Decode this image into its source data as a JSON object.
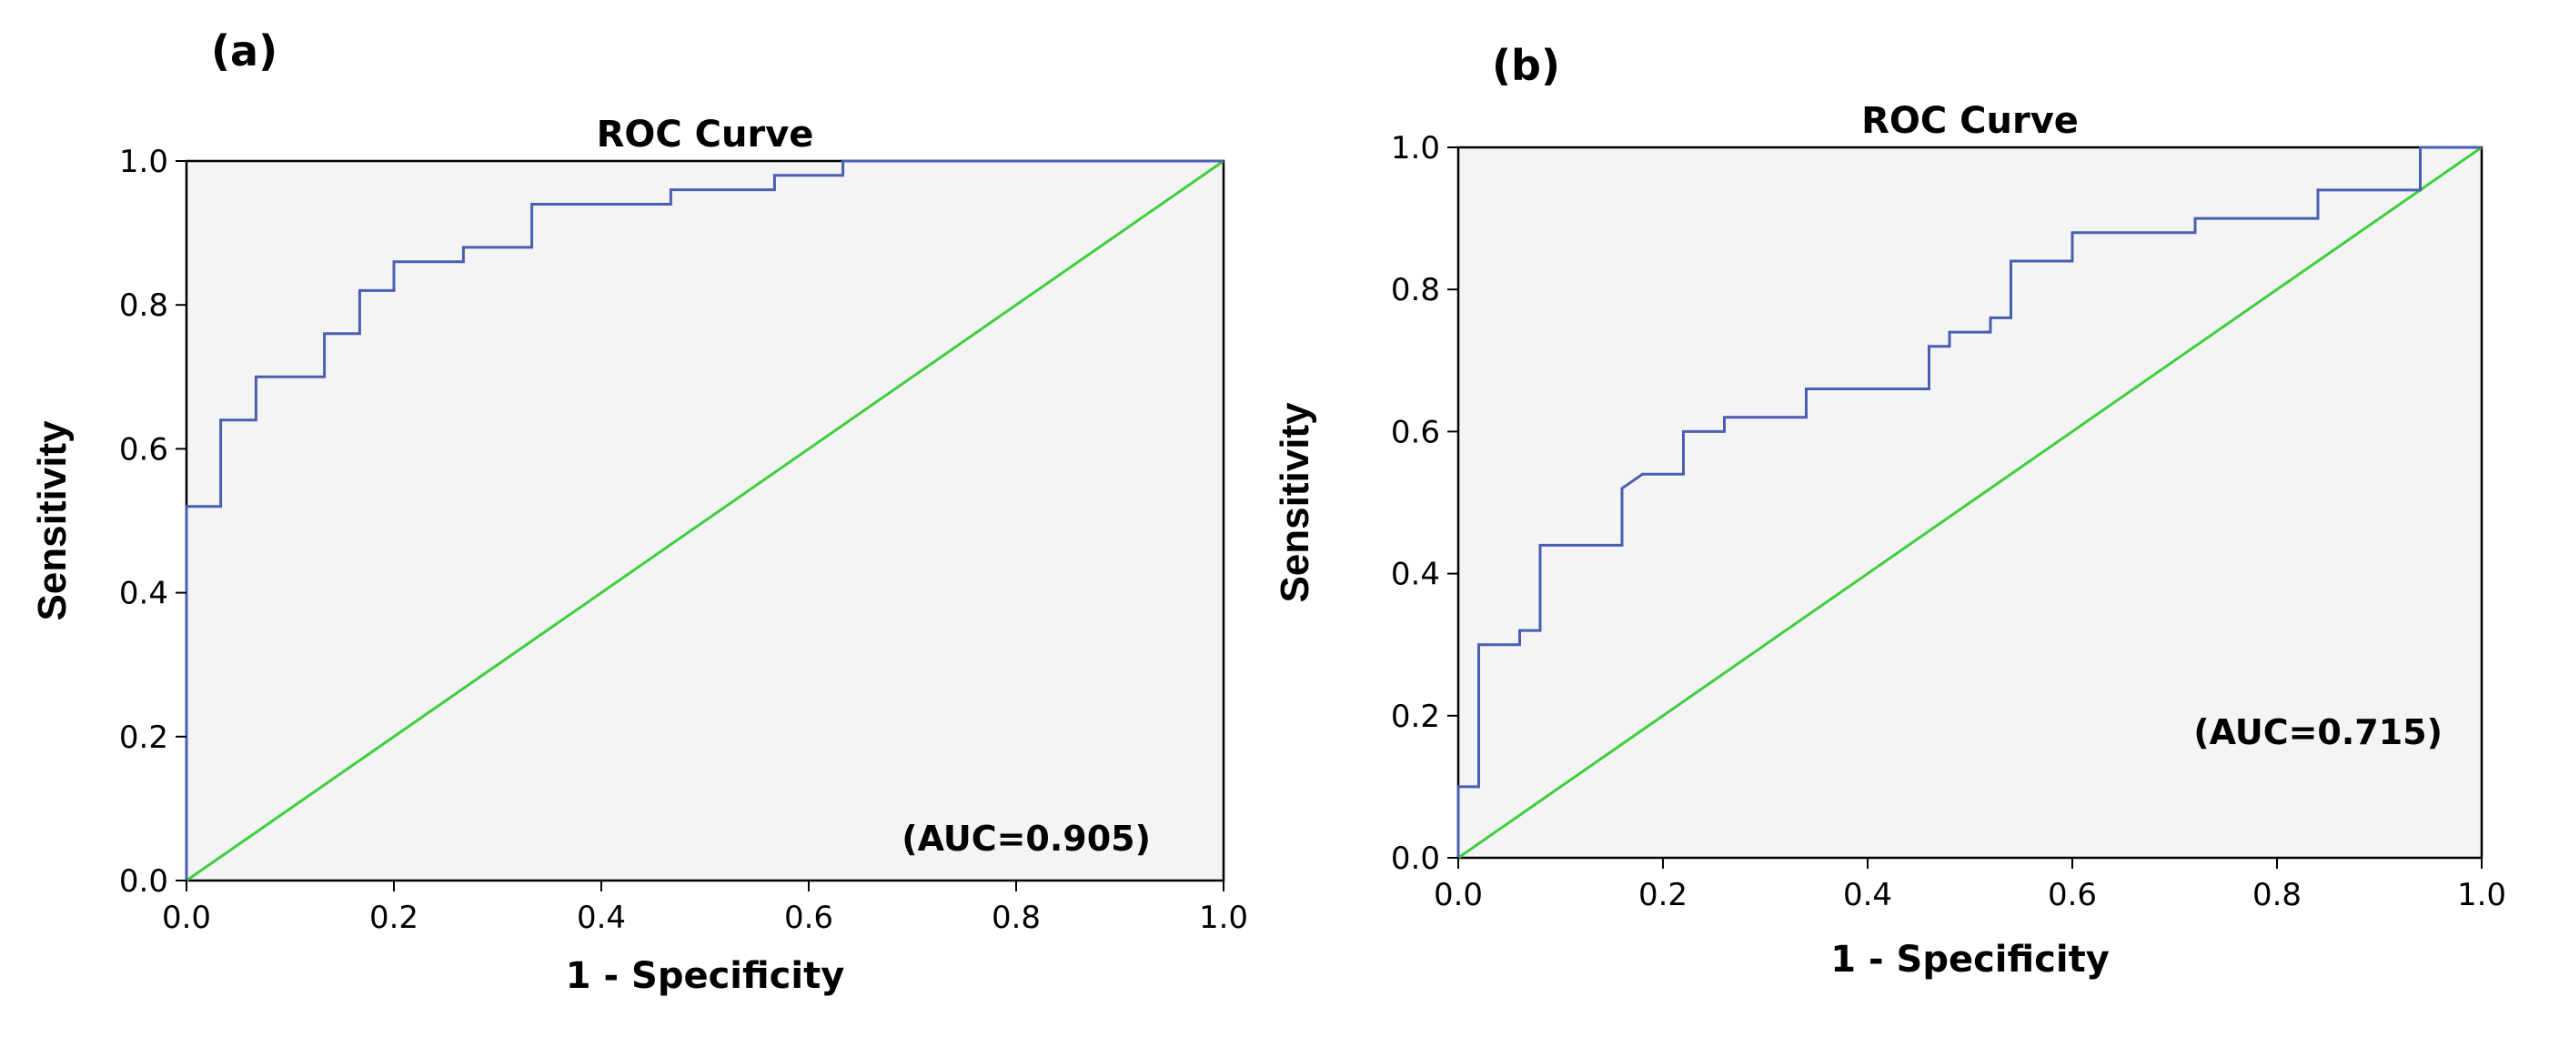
{
  "panels": [
    {
      "label": "(a)",
      "annotation": "(AUC=0.905)"
    },
    {
      "label": "(b)",
      "annotation": "(AUC=0.715)"
    }
  ],
  "colors": {
    "roc_curve": "#4a5fb0",
    "reference_line": "#3ecf3e"
  },
  "chart_data": [
    {
      "type": "line",
      "title": "ROC Curve",
      "xlabel": "1 - Specificity",
      "ylabel": "Sensitivity",
      "xlim": [
        0,
        1
      ],
      "ylim": [
        0,
        1
      ],
      "x_ticks": [
        "0.0",
        "0.2",
        "0.4",
        "0.6",
        "0.8",
        "1.0"
      ],
      "y_ticks": [
        "0.0",
        "0.2",
        "0.4",
        "0.6",
        "0.8",
        "1.0"
      ],
      "grid": false,
      "annotation": "(AUC=0.905)",
      "series": [
        {
          "style": "step",
          "points": [
            [
              0,
              0
            ],
            [
              0,
              0.52
            ],
            [
              0.033,
              0.52
            ],
            [
              0.033,
              0.64
            ],
            [
              0.067,
              0.64
            ],
            [
              0.067,
              0.7
            ],
            [
              0.133,
              0.7
            ],
            [
              0.133,
              0.76
            ],
            [
              0.167,
              0.76
            ],
            [
              0.167,
              0.82
            ],
            [
              0.2,
              0.82
            ],
            [
              0.2,
              0.86
            ],
            [
              0.267,
              0.86
            ],
            [
              0.267,
              0.88
            ],
            [
              0.333,
              0.88
            ],
            [
              0.333,
              0.94
            ],
            [
              0.467,
              0.94
            ],
            [
              0.467,
              0.96
            ],
            [
              0.567,
              0.96
            ],
            [
              0.567,
              0.98
            ],
            [
              0.633,
              0.98
            ],
            [
              0.633,
              1.0
            ],
            [
              1.0,
              1.0
            ]
          ]
        },
        {
          "style": "reference",
          "points": [
            [
              0,
              0
            ],
            [
              1,
              1
            ]
          ]
        }
      ]
    },
    {
      "type": "line",
      "title": "ROC Curve",
      "xlabel": "1 - Specificity",
      "ylabel": "Sensitivity",
      "xlim": [
        0,
        1
      ],
      "ylim": [
        0,
        1
      ],
      "x_ticks": [
        "0.0",
        "0.2",
        "0.4",
        "0.6",
        "0.8",
        "1.0"
      ],
      "y_ticks": [
        "0.0",
        "0.2",
        "0.4",
        "0.6",
        "0.8",
        "1.0"
      ],
      "grid": false,
      "annotation": "(AUC=0.715)",
      "series": [
        {
          "style": "step",
          "points": [
            [
              0,
              0
            ],
            [
              0,
              0.1
            ],
            [
              0.02,
              0.1
            ],
            [
              0.02,
              0.3
            ],
            [
              0.06,
              0.3
            ],
            [
              0.06,
              0.32
            ],
            [
              0.08,
              0.32
            ],
            [
              0.08,
              0.44
            ],
            [
              0.16,
              0.44
            ],
            [
              0.16,
              0.52
            ],
            [
              0.18,
              0.54
            ],
            [
              0.22,
              0.54
            ],
            [
              0.22,
              0.6
            ],
            [
              0.26,
              0.6
            ],
            [
              0.26,
              0.62
            ],
            [
              0.34,
              0.62
            ],
            [
              0.34,
              0.66
            ],
            [
              0.46,
              0.66
            ],
            [
              0.46,
              0.72
            ],
            [
              0.48,
              0.72
            ],
            [
              0.48,
              0.74
            ],
            [
              0.52,
              0.74
            ],
            [
              0.52,
              0.76
            ],
            [
              0.54,
              0.76
            ],
            [
              0.54,
              0.84
            ],
            [
              0.6,
              0.84
            ],
            [
              0.6,
              0.88
            ],
            [
              0.72,
              0.88
            ],
            [
              0.72,
              0.9
            ],
            [
              0.84,
              0.9
            ],
            [
              0.84,
              0.94
            ],
            [
              0.94,
              0.94
            ],
            [
              0.94,
              1.0
            ],
            [
              1.0,
              1.0
            ]
          ]
        },
        {
          "style": "reference",
          "points": [
            [
              0,
              0
            ],
            [
              1,
              1
            ]
          ]
        }
      ]
    }
  ]
}
